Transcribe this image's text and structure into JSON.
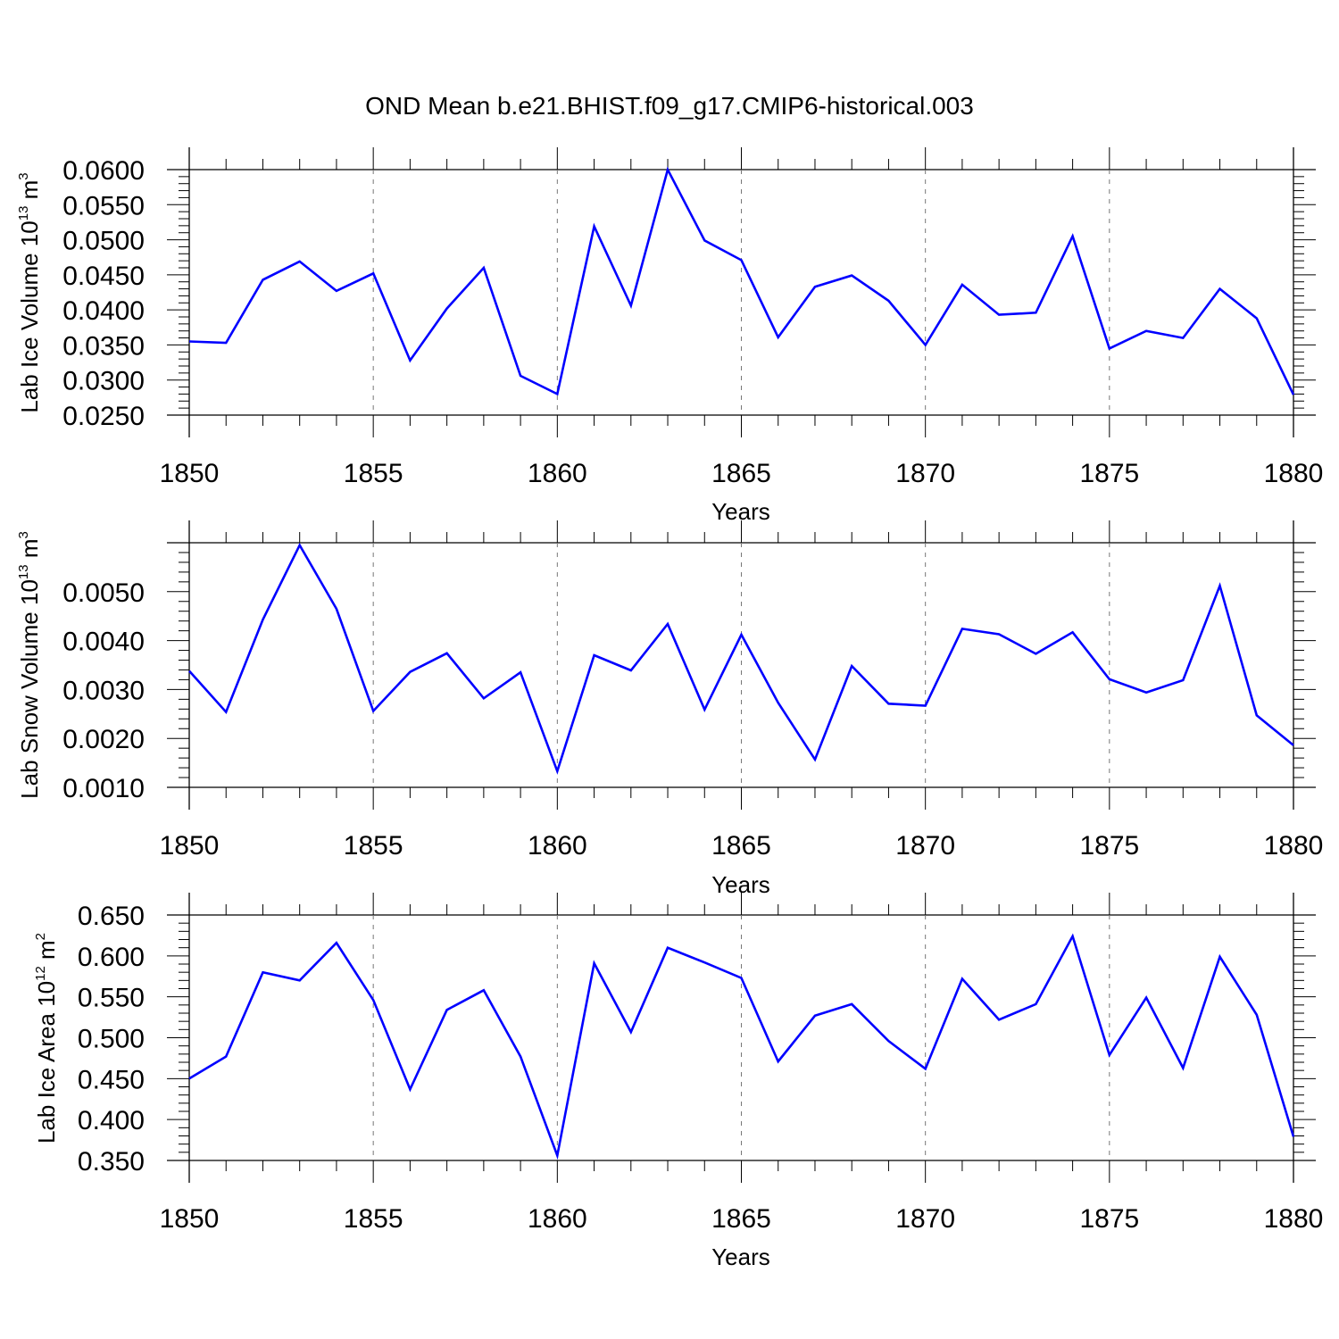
{
  "title": "OND Mean b.e21.BHIST.f09_g17.CMIP6-historical.003",
  "style": {
    "line_color": "#0000ff",
    "axis_color": "#000000",
    "grid_color": "#777777"
  },
  "chart_data": [
    {
      "type": "line",
      "title": "OND Mean b.e21.BHIST.f09_g17.CMIP6-historical.003",
      "xlabel": "Years",
      "ylabel": "Lab Ice Volume 10",
      "ylabel_exp": "13",
      "ylabel_unit": " m",
      "ylabel_unit_exp": "3",
      "xlim": [
        1850,
        1880
      ],
      "ylim": [
        0.025,
        0.06
      ],
      "xticks": [
        1850,
        1855,
        1860,
        1865,
        1870,
        1875,
        1880
      ],
      "xtick_labels": [
        "1850",
        "1855",
        "1860",
        "1865",
        "1870",
        "1875",
        "1880"
      ],
      "yticks": [
        0.025,
        0.03,
        0.035,
        0.04,
        0.045,
        0.05,
        0.055,
        0.06
      ],
      "ytick_labels": [
        "0.0250",
        "0.0300",
        "0.0350",
        "0.0400",
        "0.0450",
        "0.0500",
        "0.0550",
        "0.0600"
      ],
      "x": [
        1850,
        1851,
        1852,
        1853,
        1854,
        1855,
        1856,
        1857,
        1858,
        1859,
        1860,
        1861,
        1862,
        1863,
        1864,
        1865,
        1866,
        1867,
        1868,
        1869,
        1870,
        1871,
        1872,
        1873,
        1874,
        1875,
        1876,
        1877,
        1878,
        1879,
        1880
      ],
      "series": [
        {
          "name": "Lab Ice Volume",
          "values": [
            0.0355,
            0.0353,
            0.0443,
            0.0469,
            0.0427,
            0.0452,
            0.0328,
            0.0402,
            0.046,
            0.0306,
            0.028,
            0.0519,
            0.0406,
            0.06,
            0.0499,
            0.0471,
            0.0361,
            0.0433,
            0.0449,
            0.0413,
            0.035,
            0.0436,
            0.0393,
            0.0396,
            0.0505,
            0.0345,
            0.037,
            0.036,
            0.043,
            0.0388,
            0.0279
          ]
        }
      ],
      "grid": "dashed vertical lines at major x ticks"
    },
    {
      "type": "line",
      "xlabel": "Years",
      "ylabel": "Lab Snow Volume 10",
      "ylabel_exp": "13",
      "ylabel_unit": " m",
      "ylabel_unit_exp": "3",
      "xlim": [
        1850,
        1880
      ],
      "ylim": [
        0.001,
        0.006
      ],
      "xticks": [
        1850,
        1855,
        1860,
        1865,
        1870,
        1875,
        1880
      ],
      "xtick_labels": [
        "1850",
        "1855",
        "1860",
        "1865",
        "1870",
        "1875",
        "1880"
      ],
      "yticks": [
        0.001,
        0.002,
        0.003,
        0.004,
        0.005
      ],
      "ytick_labels": [
        "0.0010",
        "0.0020",
        "0.0030",
        "0.0040",
        "0.0050"
      ],
      "x": [
        1850,
        1851,
        1852,
        1853,
        1854,
        1855,
        1856,
        1857,
        1858,
        1859,
        1860,
        1861,
        1862,
        1863,
        1864,
        1865,
        1866,
        1867,
        1868,
        1869,
        1870,
        1871,
        1872,
        1873,
        1874,
        1875,
        1876,
        1877,
        1878,
        1879,
        1880
      ],
      "series": [
        {
          "name": "Lab Snow Volume",
          "values": [
            0.00338,
            0.00254,
            0.00443,
            0.00595,
            0.00465,
            0.00256,
            0.00336,
            0.00374,
            0.00282,
            0.00335,
            0.00133,
            0.0037,
            0.00339,
            0.00434,
            0.00259,
            0.00412,
            0.00273,
            0.00157,
            0.00348,
            0.00271,
            0.00267,
            0.00424,
            0.00413,
            0.00373,
            0.00417,
            0.00321,
            0.00294,
            0.00319,
            0.00512,
            0.00247,
            0.00186
          ]
        }
      ],
      "grid": "dashed vertical lines at major x ticks"
    },
    {
      "type": "line",
      "xlabel": "Years",
      "ylabel": "Lab Ice Area 10",
      "ylabel_exp": "12",
      "ylabel_unit": " m",
      "ylabel_unit_exp": "2",
      "xlim": [
        1850,
        1880
      ],
      "ylim": [
        0.35,
        0.65
      ],
      "xticks": [
        1850,
        1855,
        1860,
        1865,
        1870,
        1875,
        1880
      ],
      "xtick_labels": [
        "1850",
        "1855",
        "1860",
        "1865",
        "1870",
        "1875",
        "1880"
      ],
      "yticks": [
        0.35,
        0.4,
        0.45,
        0.5,
        0.55,
        0.6,
        0.65
      ],
      "ytick_labels": [
        "0.350",
        "0.400",
        "0.450",
        "0.500",
        "0.550",
        "0.600",
        "0.650"
      ],
      "x": [
        1850,
        1851,
        1852,
        1853,
        1854,
        1855,
        1856,
        1857,
        1858,
        1859,
        1860,
        1861,
        1862,
        1863,
        1864,
        1865,
        1866,
        1867,
        1868,
        1869,
        1870,
        1871,
        1872,
        1873,
        1874,
        1875,
        1876,
        1877,
        1878,
        1879,
        1880
      ],
      "series": [
        {
          "name": "Lab Ice Area",
          "values": [
            0.45,
            0.477,
            0.58,
            0.57,
            0.616,
            0.546,
            0.437,
            0.534,
            0.558,
            0.477,
            0.356,
            0.591,
            0.507,
            0.61,
            0.592,
            0.573,
            0.471,
            0.527,
            0.541,
            0.496,
            0.462,
            0.572,
            0.522,
            0.541,
            0.624,
            0.479,
            0.549,
            0.463,
            0.599,
            0.528,
            0.379
          ]
        }
      ],
      "grid": "dashed vertical lines at major x ticks"
    }
  ]
}
